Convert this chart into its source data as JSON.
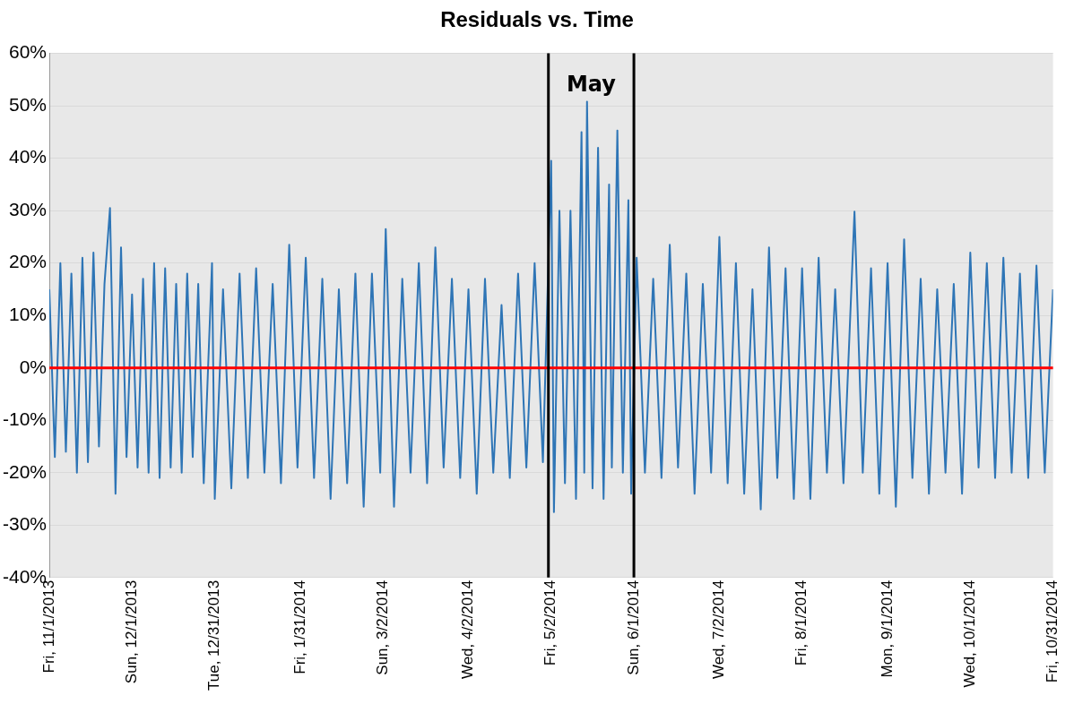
{
  "chart_data": {
    "type": "line",
    "title": "Residuals vs. Time",
    "x": [
      "2013-11-01",
      "2013-11-03",
      "2013-11-05",
      "2013-11-07",
      "2013-11-09",
      "2013-11-11",
      "2013-11-13",
      "2013-11-15",
      "2013-11-17",
      "2013-11-19",
      "2013-11-21",
      "2013-11-23",
      "2013-11-25",
      "2013-11-27",
      "2013-11-29",
      "2013-12-01",
      "2013-12-03",
      "2013-12-05",
      "2013-12-07",
      "2013-12-09",
      "2013-12-11",
      "2013-12-13",
      "2013-12-15",
      "2013-12-17",
      "2013-12-19",
      "2013-12-21",
      "2013-12-23",
      "2013-12-25",
      "2013-12-27",
      "2013-12-30",
      "2013-12-31",
      "2014-01-03",
      "2014-01-06",
      "2014-01-09",
      "2014-01-12",
      "2014-01-15",
      "2014-01-18",
      "2014-01-21",
      "2014-01-24",
      "2014-01-27",
      "2014-01-30",
      "2014-02-02",
      "2014-02-05",
      "2014-02-08",
      "2014-02-11",
      "2014-02-14",
      "2014-02-17",
      "2014-02-20",
      "2014-02-23",
      "2014-02-26",
      "2014-03-01",
      "2014-03-03",
      "2014-03-06",
      "2014-03-09",
      "2014-03-12",
      "2014-03-15",
      "2014-03-18",
      "2014-03-21",
      "2014-03-24",
      "2014-03-27",
      "2014-03-30",
      "2014-04-02",
      "2014-04-05",
      "2014-04-08",
      "2014-04-11",
      "2014-04-14",
      "2014-04-17",
      "2014-04-20",
      "2014-04-23",
      "2014-04-26",
      "2014-04-29",
      "2014-05-02",
      "2014-05-03",
      "2014-05-05",
      "2014-05-07",
      "2014-05-09",
      "2014-05-11",
      "2014-05-13",
      "2014-05-14",
      "2014-05-15",
      "2014-05-17",
      "2014-05-19",
      "2014-05-21",
      "2014-05-23",
      "2014-05-24",
      "2014-05-26",
      "2014-05-28",
      "2014-05-30",
      "2014-05-31",
      "2014-06-02",
      "2014-06-05",
      "2014-06-08",
      "2014-06-11",
      "2014-06-14",
      "2014-06-17",
      "2014-06-20",
      "2014-06-23",
      "2014-06-26",
      "2014-06-29",
      "2014-07-02",
      "2014-07-05",
      "2014-07-08",
      "2014-07-11",
      "2014-07-14",
      "2014-07-17",
      "2014-07-20",
      "2014-07-23",
      "2014-07-26",
      "2014-07-29",
      "2014-08-01",
      "2014-08-04",
      "2014-08-07",
      "2014-08-10",
      "2014-08-13",
      "2014-08-16",
      "2014-08-20",
      "2014-08-23",
      "2014-08-26",
      "2014-08-29",
      "2014-09-01",
      "2014-09-04",
      "2014-09-07",
      "2014-09-10",
      "2014-09-13",
      "2014-09-16",
      "2014-09-19",
      "2014-09-22",
      "2014-09-25",
      "2014-09-28",
      "2014-10-01",
      "2014-10-04",
      "2014-10-07",
      "2014-10-10",
      "2014-10-13",
      "2014-10-16",
      "2014-10-19",
      "2014-10-22",
      "2014-10-25",
      "2014-10-28",
      "2014-10-31"
    ],
    "series": [
      {
        "color": "#2e75b6",
        "values": [
          15,
          -17,
          20,
          -16,
          18,
          -20,
          21,
          -18,
          22,
          -15,
          16,
          30.5,
          -24,
          23,
          -17,
          14,
          -19,
          17,
          -20,
          20,
          -21,
          19,
          -19,
          16,
          -20,
          18,
          -17,
          16,
          -22,
          20,
          -25,
          15,
          -23,
          18,
          -21,
          19,
          -20,
          16,
          -22,
          23.5,
          -19,
          21,
          -21,
          17,
          -25,
          15,
          -22,
          18,
          -26.5,
          18,
          -20,
          26.5,
          -26.5,
          17,
          -20,
          20,
          -22,
          23,
          -19,
          17,
          -21,
          15,
          -24,
          17,
          -20,
          12,
          -21,
          18,
          -19,
          20,
          -18,
          39.5,
          -27.5,
          30,
          -22,
          30,
          -25,
          45,
          -20,
          50.8,
          -23,
          42,
          -25,
          35,
          -19,
          45.3,
          -20,
          32,
          -24,
          21,
          -20,
          17,
          -21,
          23.5,
          -19,
          18,
          -24,
          16,
          -20,
          25,
          -22,
          20,
          -24,
          15,
          -27,
          23,
          -21,
          19,
          -25,
          19,
          -25,
          21,
          -20,
          15,
          -22,
          29.8,
          -20,
          19,
          -24,
          20,
          -26.5,
          24.5,
          -21,
          17,
          -24,
          15,
          -20,
          16,
          -24,
          22,
          -19,
          20,
          -21,
          21,
          -20,
          18,
          -21,
          19.5,
          -20,
          15
        ]
      }
    ],
    "xlim": [
      "2013-11-01",
      "2014-10-31"
    ],
    "xticks": [
      {
        "value": "2013-11-01",
        "label": "Fri, 11/1/2013"
      },
      {
        "value": "2013-12-01",
        "label": "Sun, 12/1/2013"
      },
      {
        "value": "2013-12-31",
        "label": "Tue, 12/31/2013"
      },
      {
        "value": "2014-01-31",
        "label": "Fri, 1/31/2014"
      },
      {
        "value": "2014-03-02",
        "label": "Sun, 3/2/2014"
      },
      {
        "value": "2014-04-02",
        "label": "Wed, 4/2/2014"
      },
      {
        "value": "2014-05-02",
        "label": "Fri, 5/2/2014"
      },
      {
        "value": "2014-06-01",
        "label": "Sun, 6/1/2014"
      },
      {
        "value": "2014-07-02",
        "label": "Wed, 7/2/2014"
      },
      {
        "value": "2014-08-01",
        "label": "Fri, 8/1/2014"
      },
      {
        "value": "2014-09-01",
        "label": "Mon, 9/1/2014"
      },
      {
        "value": "2014-10-01",
        "label": "Wed, 10/1/2014"
      },
      {
        "value": "2014-10-31",
        "label": "Fri, 10/31/2014"
      }
    ],
    "ylim": [
      -40,
      60
    ],
    "yticks": [
      {
        "value": -40,
        "label": "-40%"
      },
      {
        "value": -30,
        "label": "-30%"
      },
      {
        "value": -20,
        "label": "-20%"
      },
      {
        "value": -10,
        "label": "-10%"
      },
      {
        "value": 0,
        "label": "0%"
      },
      {
        "value": 10,
        "label": "10%"
      },
      {
        "value": 20,
        "label": "20%"
      },
      {
        "value": 30,
        "label": "30%"
      },
      {
        "value": 40,
        "label": "40%"
      },
      {
        "value": 50,
        "label": "50%"
      },
      {
        "value": 60,
        "label": "60%"
      }
    ],
    "grid": "y",
    "ref_lines": [
      {
        "axis": "y",
        "value": 0,
        "color": "#ff0000"
      },
      {
        "axis": "x",
        "value": "2014-05-01",
        "color": "#000000"
      },
      {
        "axis": "x",
        "value": "2014-06-01",
        "color": "#000000"
      }
    ],
    "annotations": [
      "May"
    ]
  }
}
